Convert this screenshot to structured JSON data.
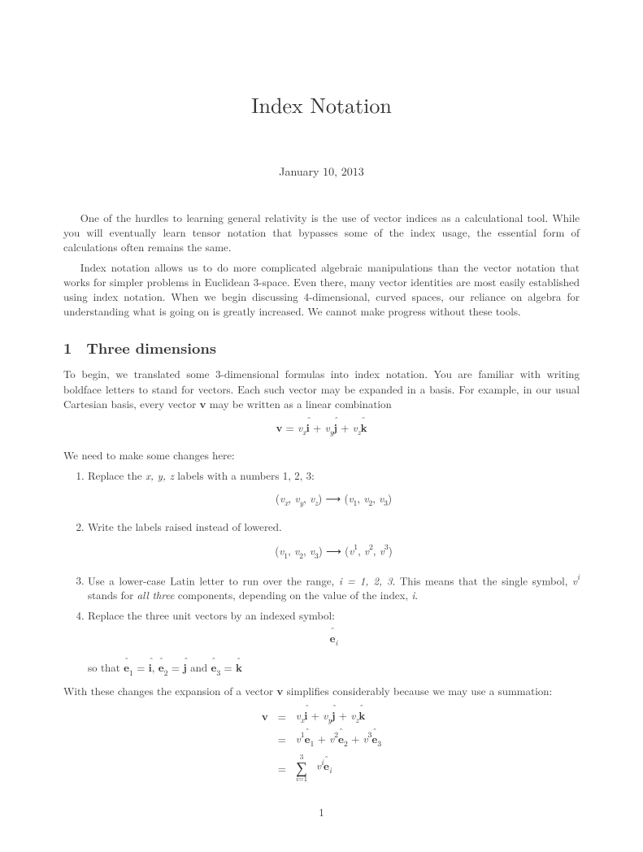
{
  "title": "Index Notation",
  "date": "January 10, 2013",
  "intro_p1": "One of the hurdles to learning general relativity is the use of vector indices as a calculational tool. While you will eventually learn tensor notation that bypasses some of the index usage, the essential form of calculations often remains the same.",
  "intro_p2": "Index notation allows us to do more complicated algebraic manipulations than the vector notation that works for simpler problems in Euclidean 3-space. Even there, many vector identities are most easily established using index notation. When we begin discussing 4-dimensional, curved spaces, our reliance on algebra for understanding what is going on is greatly increased. We cannot make progress without these tools.",
  "section1_num": "1",
  "section1_title": "Three dimensions",
  "section1_p1_a": "To begin, we translated some 3-dimensional formulas into index notation. You are familiar with writing boldface letters to stand for vectors. Each such vector may be expanded in a basis. For example, in our usual Cartesian basis, every vector ",
  "section1_p1_b": " may be written as a linear combination",
  "changes_intro": "We need to make some changes here:",
  "item1_a": "Replace the ",
  "item1_b": " labels with a numbers ",
  "item1_c": ":",
  "item2": "Write the labels raised instead of lowered.",
  "item3_a": "Use a lower-case Latin letter to run over the range, ",
  "item3_b": ". This means that the single symbol, ",
  "item3_c": " stands for ",
  "item3_d": "all three",
  "item3_e": " components, depending on the value of the index, ",
  "item3_f": ".",
  "item4": "Replace the three unit vectors by an indexed symbol:",
  "sothat_a": "so that ",
  "sothat_b": " and ",
  "closing_a": "With these changes the expansion of a vector ",
  "closing_b": " simplifies considerably because we may use a summation:",
  "pagenum": "1",
  "sym": {
    "v_bold": "v",
    "xyz": "x, y, z",
    "onetwothree": "1, 2, 3",
    "i_eq_123": "i = 1, 2, 3",
    "ital_i": "i"
  },
  "math": {
    "xlabels": [
      "x",
      "y",
      "z"
    ],
    "nlabels": [
      "1",
      "2",
      "3"
    ],
    "basis_letters": [
      "i",
      "j",
      "k"
    ],
    "page_font_color": "#333333",
    "background": "#ffffff"
  }
}
